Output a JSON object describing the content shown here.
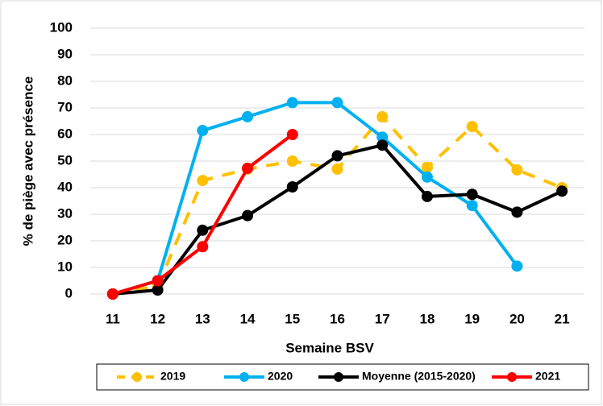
{
  "chart_data": {
    "type": "line",
    "xlabel": "Semaine BSV",
    "ylabel": "% de piège avec présence",
    "categories": [
      "11",
      "12",
      "13",
      "14",
      "15",
      "16",
      "17",
      "18",
      "19",
      "20",
      "21"
    ],
    "ylim": [
      0,
      100
    ],
    "yticks": [
      0,
      10,
      20,
      30,
      40,
      50,
      60,
      70,
      80,
      90,
      100
    ],
    "grid": true,
    "legend": "bottom",
    "series": [
      {
        "name": "2019",
        "color": "#FFC000",
        "dashed": true,
        "values": [
          0,
          3,
          42.7,
          47,
          50,
          47,
          66.7,
          47.6,
          63,
          46.7,
          40
        ]
      },
      {
        "name": "2020",
        "color": "#00B0F0",
        "values": [
          0,
          5,
          61.5,
          66.7,
          72,
          72,
          59,
          44,
          33.3,
          10.5,
          null
        ]
      },
      {
        "name": "Moyenne (2015-2020)",
        "color": "#000000",
        "values": [
          0,
          1.5,
          24,
          29.5,
          40.3,
          52,
          56,
          36.7,
          37.5,
          30.8,
          38.7
        ]
      },
      {
        "name": "2021",
        "color": "#FF0000",
        "values": [
          0,
          5,
          17.8,
          47.3,
          60,
          null,
          null,
          null,
          null,
          null,
          null
        ]
      }
    ]
  }
}
